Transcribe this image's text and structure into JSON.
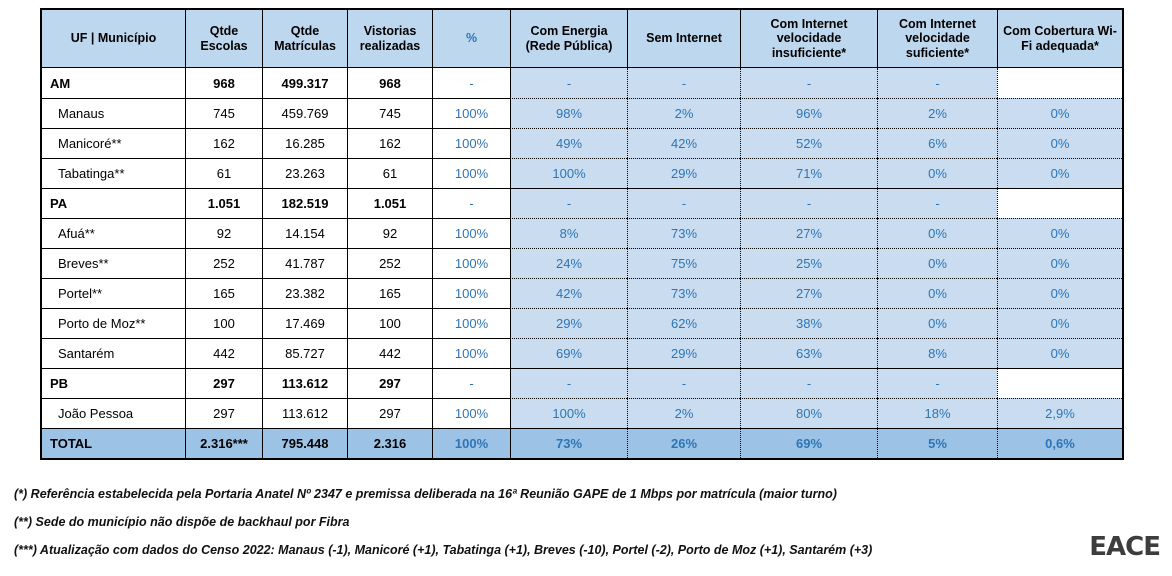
{
  "colors": {
    "header_bg": "#BDD7EE",
    "shaded_cell_bg": "#C9DCF0",
    "total_row_bg": "#9CC2E5",
    "value_text_blue": "#2E75B6",
    "border": "#000000"
  },
  "table": {
    "headers": [
      "UF | Município",
      "Qtde Escolas",
      "Qtde Matrículas",
      "Vistorias realizadas",
      "%",
      "Com Energia (Rede Pública)",
      "Sem Internet",
      "Com Internet velocidade insuficiente*",
      "Com Internet velocidade suficiente*",
      "Com Cobertura Wi-Fi adequada*"
    ],
    "rows": [
      {
        "type": "state",
        "cells": [
          "AM",
          "968",
          "499.317",
          "968",
          "-",
          "-",
          "-",
          "-",
          "-",
          ""
        ]
      },
      {
        "type": "muni",
        "cells": [
          "Manaus",
          "745",
          "459.769",
          "745",
          "100%",
          "98%",
          "2%",
          "96%",
          "2%",
          "0%"
        ]
      },
      {
        "type": "muni",
        "cells": [
          "Manicoré**",
          "162",
          "16.285",
          "162",
          "100%",
          "49%",
          "42%",
          "52%",
          "6%",
          "0%"
        ]
      },
      {
        "type": "muni",
        "cells": [
          "Tabatinga**",
          "61",
          "23.263",
          "61",
          "100%",
          "100%",
          "29%",
          "71%",
          "0%",
          "0%"
        ]
      },
      {
        "type": "state",
        "cells": [
          "PA",
          "1.051",
          "182.519",
          "1.051",
          "-",
          "-",
          "-",
          "-",
          "-",
          ""
        ]
      },
      {
        "type": "muni",
        "cells": [
          "Afuá**",
          "92",
          "14.154",
          "92",
          "100%",
          "8%",
          "73%",
          "27%",
          "0%",
          "0%"
        ]
      },
      {
        "type": "muni",
        "cells": [
          "Breves**",
          "252",
          "41.787",
          "252",
          "100%",
          "24%",
          "75%",
          "25%",
          "0%",
          "0%"
        ]
      },
      {
        "type": "muni",
        "cells": [
          "Portel**",
          "165",
          "23.382",
          "165",
          "100%",
          "42%",
          "73%",
          "27%",
          "0%",
          "0%"
        ]
      },
      {
        "type": "muni",
        "cells": [
          "Porto de Moz**",
          "100",
          "17.469",
          "100",
          "100%",
          "29%",
          "62%",
          "38%",
          "0%",
          "0%"
        ]
      },
      {
        "type": "muni",
        "cells": [
          "Santarém",
          "442",
          "85.727",
          "442",
          "100%",
          "69%",
          "29%",
          "63%",
          "8%",
          "0%"
        ]
      },
      {
        "type": "state",
        "cells": [
          "PB",
          "297",
          "113.612",
          "297",
          "-",
          "-",
          "-",
          "-",
          "-",
          ""
        ]
      },
      {
        "type": "muni",
        "cells": [
          "João Pessoa",
          "297",
          "113.612",
          "297",
          "100%",
          "100%",
          "2%",
          "80%",
          "18%",
          "2,9%"
        ]
      },
      {
        "type": "total",
        "cells": [
          "TOTAL",
          "2.316***",
          "795.448",
          "2.316",
          "100%",
          "73%",
          "26%",
          "69%",
          "5%",
          "0,6%"
        ]
      }
    ]
  },
  "footnotes": [
    "(*) Referência estabelecida pela Portaria Anatel Nº 2347 e premissa deliberada na 16ª Reunião GAPE de 1 Mbps por matrícula (maior turno)",
    "(**) Sede do município não dispõe de backhaul por Fibra",
    "(***) Atualização com dados do Censo 2022: Manaus (-1), Manicoré (+1), Tabatinga (+1), Breves (-10), Portel (-2), Porto de Moz (+1), Santarém (+3)"
  ],
  "logo": "EACE"
}
